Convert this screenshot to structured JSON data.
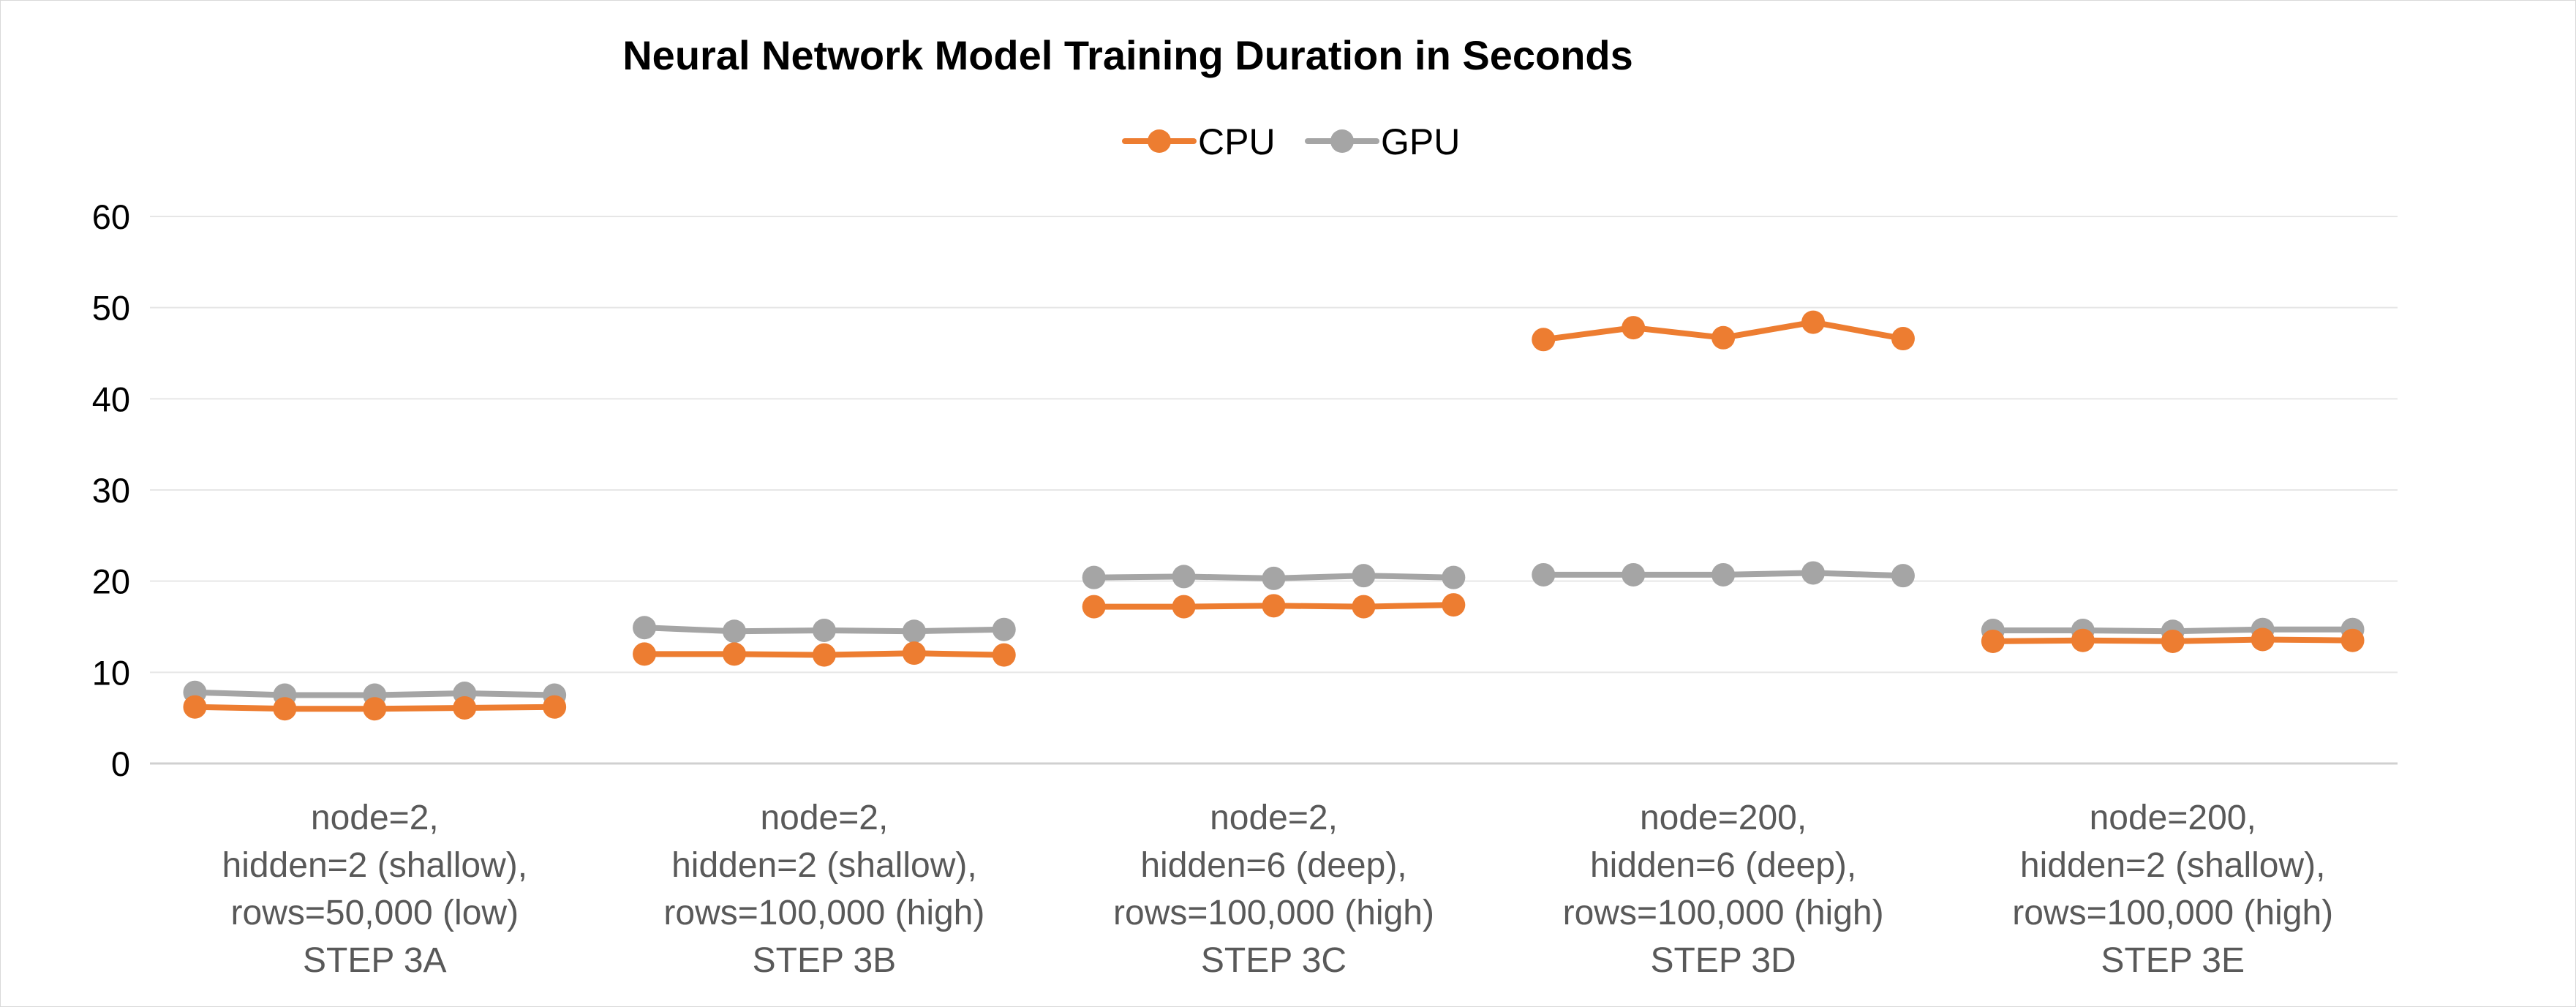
{
  "chart_data": {
    "type": "line",
    "title": "Neural Network Model Training Duration in Seconds",
    "xlabel": "",
    "ylabel": "",
    "ylim": [
      0,
      60
    ],
    "yticks": [
      0,
      10,
      20,
      30,
      40,
      50,
      60
    ],
    "grid": true,
    "legend_position": "top-center",
    "groups": [
      {
        "lines": [
          "node=2,",
          "hidden=2 (shallow),",
          "rows=50,000 (low)",
          "STEP 3A"
        ],
        "points": 5
      },
      {
        "lines": [
          "node=2,",
          "hidden=2 (shallow),",
          "rows=100,000 (high)",
          "STEP 3B"
        ],
        "points": 5
      },
      {
        "lines": [
          "node=2,",
          "hidden=6 (deep),",
          "rows=100,000 (high)",
          "STEP 3C"
        ],
        "points": 5
      },
      {
        "lines": [
          "node=200,",
          "hidden=6 (deep),",
          "rows=100,000 (high)",
          "STEP 3D"
        ],
        "points": 5
      },
      {
        "lines": [
          "node=200,",
          "hidden=2 (shallow),",
          "rows=100,000 (high)",
          "STEP 3E"
        ],
        "points": 5
      }
    ],
    "series": [
      {
        "name": "CPU",
        "color": "#ED7D31",
        "values": [
          [
            6.2,
            6.0,
            6.0,
            6.1,
            6.2
          ],
          [
            12.0,
            12.0,
            11.9,
            12.1,
            11.9
          ],
          [
            17.2,
            17.2,
            17.3,
            17.2,
            17.4
          ],
          [
            46.5,
            47.8,
            46.7,
            48.4,
            46.6
          ],
          [
            13.4,
            13.5,
            13.4,
            13.6,
            13.5
          ]
        ]
      },
      {
        "name": "GPU",
        "color": "#A5A5A5",
        "values": [
          [
            7.8,
            7.5,
            7.5,
            7.7,
            7.5
          ],
          [
            14.9,
            14.5,
            14.6,
            14.5,
            14.7
          ],
          [
            20.4,
            20.5,
            20.3,
            20.6,
            20.4
          ],
          [
            20.7,
            20.7,
            20.7,
            20.9,
            20.6
          ],
          [
            14.6,
            14.6,
            14.5,
            14.7,
            14.7
          ]
        ]
      }
    ]
  }
}
